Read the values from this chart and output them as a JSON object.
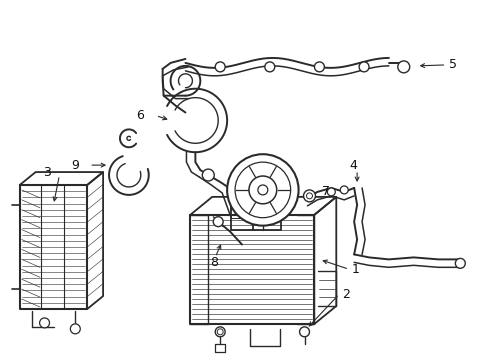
{
  "bg_color": "#ffffff",
  "line_color": "#2a2a2a",
  "figsize": [
    4.89,
    3.6
  ],
  "dpi": 100,
  "xlim": [
    0,
    489
  ],
  "ylim": [
    0,
    360
  ]
}
